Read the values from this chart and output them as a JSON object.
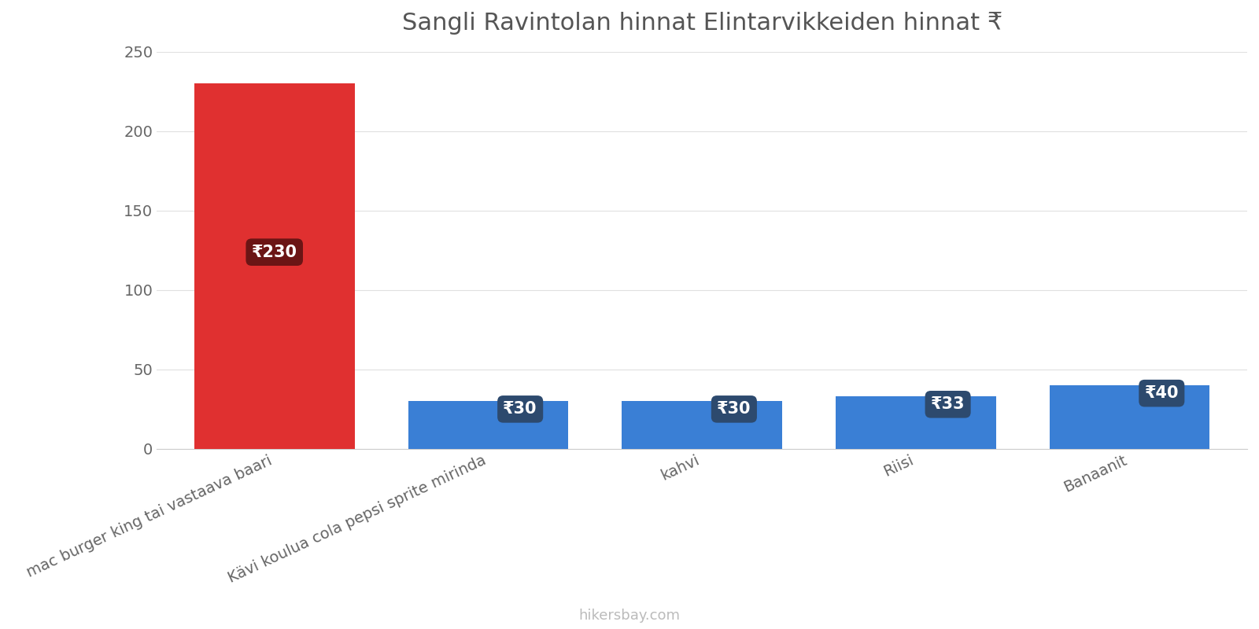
{
  "title": "Sangli Ravintolan hinnat Elintarvikkeiden hinnat ₹",
  "categories": [
    "mac burger king tai vastaava baari",
    "Kävi koulua cola pepsi sprite mirinda",
    "kahvi",
    "Riisi",
    "Banaanit"
  ],
  "values": [
    230,
    30,
    30,
    33,
    40
  ],
  "bar_colors": [
    "#e03030",
    "#3a7fd5",
    "#3a7fd5",
    "#3a7fd5",
    "#3a7fd5"
  ],
  "label_prefix": "₹",
  "ylim": [
    0,
    250
  ],
  "yticks": [
    0,
    50,
    100,
    150,
    200,
    250
  ],
  "title_fontsize": 22,
  "tick_fontsize": 14,
  "label_fontsize": 15,
  "watermark": "hikersbay.com",
  "watermark_color": "#bbbbbb",
  "bg_color": "#ffffff",
  "grid_color": "#e0e0e0",
  "annotation_bg_red": "#6b1515",
  "annotation_bg_blue": "#2d4a6e",
  "annotation_text_color": "#ffffff"
}
